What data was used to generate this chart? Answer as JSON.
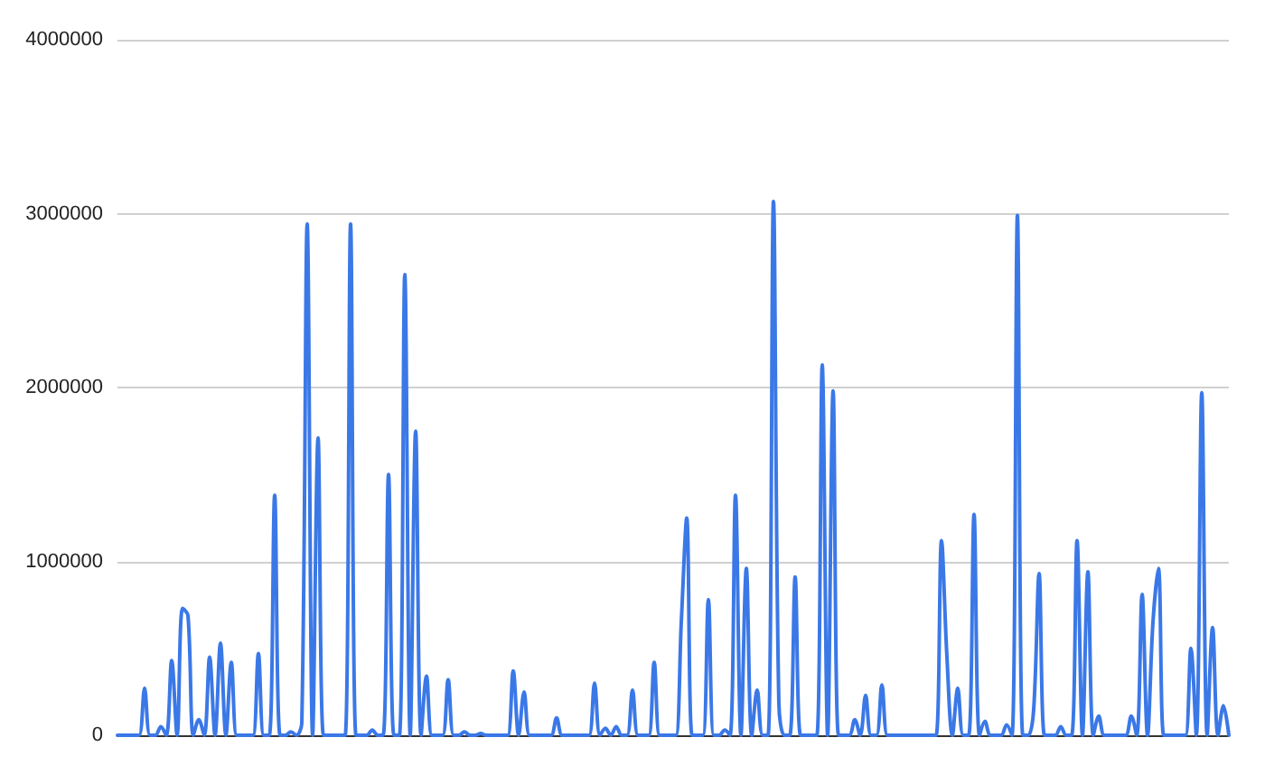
{
  "chart_data": {
    "type": "line",
    "color": "#3b78e7",
    "ylim": [
      0,
      4000000
    ],
    "yticks": [
      0,
      1000000,
      2000000,
      3000000,
      4000000
    ],
    "grid": "y",
    "line_style": "solid",
    "tick_labels": "y",
    "categories": [
      null,
      null,
      null,
      null,
      null,
      null,
      null,
      null,
      null,
      null,
      null,
      null,
      null,
      null,
      null,
      null,
      null,
      null,
      null,
      null,
      null,
      null,
      null,
      null,
      null,
      null,
      null,
      null,
      null,
      null,
      null,
      null,
      null,
      null,
      null,
      null,
      null,
      null,
      null,
      null,
      null,
      null,
      null,
      null,
      null,
      null,
      null,
      null,
      null,
      null,
      null,
      null,
      null,
      null,
      null,
      null,
      null,
      null,
      null,
      null,
      null,
      null,
      null,
      null,
      null,
      null,
      null,
      null,
      null,
      null,
      null,
      null,
      null,
      null,
      null,
      null,
      null,
      null,
      null,
      null,
      null,
      null,
      null,
      null,
      null,
      null,
      null,
      null,
      null,
      null,
      null,
      null,
      null,
      null,
      null,
      null,
      null,
      null,
      null,
      null,
      null,
      null,
      null,
      null,
      null,
      null,
      null,
      null,
      null,
      null,
      null,
      null,
      null,
      null,
      null,
      null,
      null,
      null,
      null,
      null,
      null,
      null,
      null,
      null,
      null,
      null,
      null,
      null,
      null,
      null,
      null,
      null,
      null,
      null,
      null,
      null,
      null,
      null,
      null,
      null,
      null,
      null,
      null,
      null,
      null,
      null,
      null,
      null,
      null,
      null,
      null,
      null,
      null,
      null,
      null,
      null,
      null,
      null,
      null,
      null,
      null,
      null,
      null,
      null,
      null,
      null,
      null,
      null,
      null,
      null,
      null,
      null,
      null,
      null,
      null,
      null,
      null,
      null,
      null,
      null,
      null,
      null,
      null,
      null,
      null,
      null,
      null,
      null,
      null,
      null,
      null,
      null,
      null,
      null,
      null,
      null,
      null,
      null,
      null,
      null,
      null,
      null,
      null,
      null,
      null,
      null
    ],
    "values": [
      0,
      0,
      0,
      0,
      0,
      270000,
      0,
      0,
      50000,
      0,
      430000,
      0,
      730000,
      690000,
      0,
      90000,
      0,
      450000,
      0,
      530000,
      0,
      420000,
      0,
      0,
      0,
      0,
      470000,
      0,
      0,
      1380000,
      0,
      0,
      20000,
      0,
      70000,
      2940000,
      0,
      1710000,
      0,
      0,
      0,
      0,
      0,
      2940000,
      0,
      0,
      0,
      30000,
      0,
      0,
      1500000,
      0,
      0,
      2650000,
      0,
      1750000,
      0,
      340000,
      0,
      0,
      0,
      320000,
      0,
      0,
      20000,
      0,
      0,
      10000,
      0,
      0,
      0,
      0,
      0,
      370000,
      0,
      250000,
      0,
      0,
      0,
      0,
      0,
      100000,
      0,
      0,
      0,
      0,
      0,
      0,
      300000,
      0,
      40000,
      0,
      50000,
      0,
      0,
      260000,
      0,
      0,
      0,
      420000,
      0,
      0,
      0,
      0,
      650000,
      1250000,
      0,
      0,
      0,
      780000,
      0,
      0,
      30000,
      0,
      1380000,
      0,
      960000,
      0,
      260000,
      0,
      0,
      3070000,
      180000,
      0,
      0,
      910000,
      0,
      0,
      0,
      0,
      2130000,
      0,
      1980000,
      0,
      0,
      0,
      90000,
      0,
      230000,
      0,
      0,
      290000,
      0,
      0,
      0,
      0,
      0,
      0,
      0,
      0,
      0,
      0,
      1120000,
      450000,
      0,
      270000,
      0,
      0,
      1270000,
      0,
      80000,
      0,
      0,
      0,
      60000,
      0,
      2990000,
      0,
      0,
      150000,
      930000,
      0,
      0,
      0,
      50000,
      0,
      0,
      1120000,
      0,
      940000,
      0,
      110000,
      0,
      0,
      0,
      0,
      0,
      110000,
      0,
      810000,
      0,
      650000,
      960000,
      0,
      0,
      0,
      0,
      0,
      500000,
      0,
      1970000,
      0,
      620000,
      0,
      170000,
      0
    ]
  }
}
